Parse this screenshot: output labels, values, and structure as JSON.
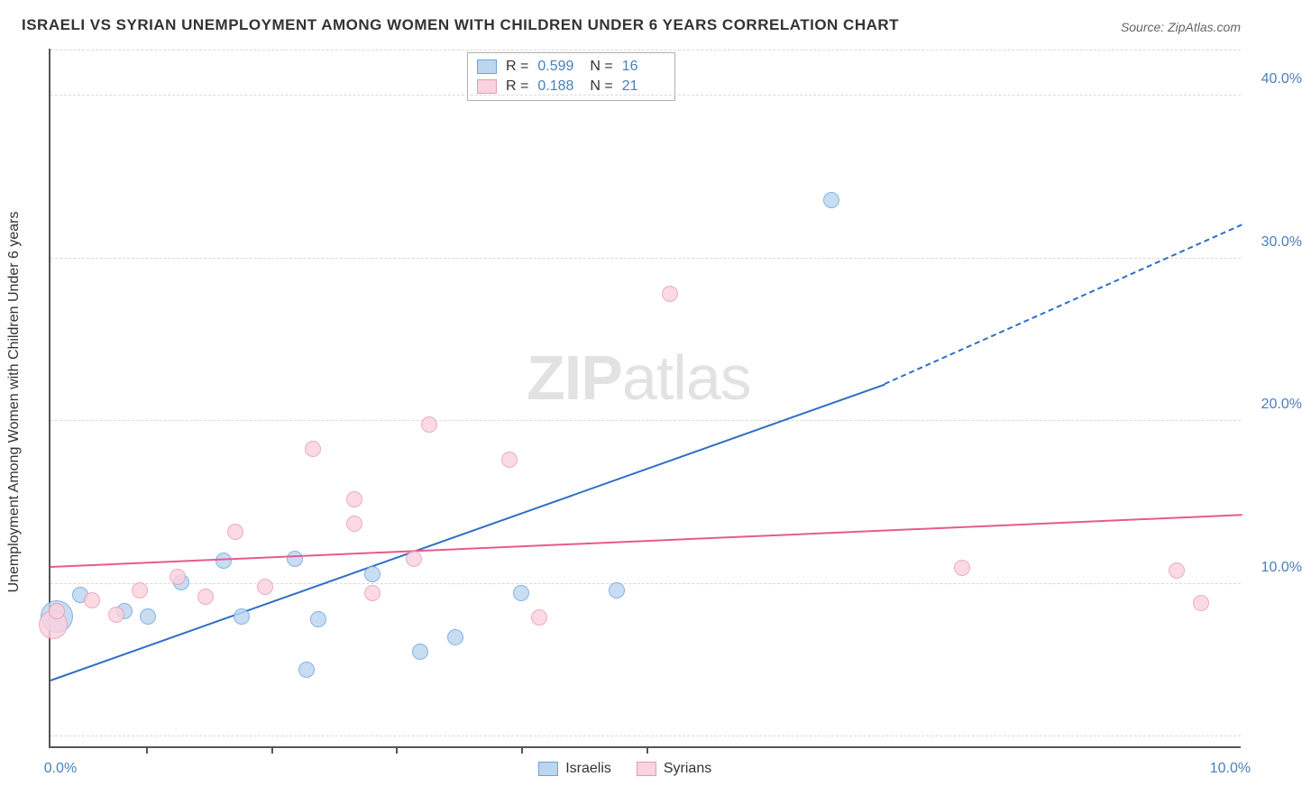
{
  "title": "ISRAELI VS SYRIAN UNEMPLOYMENT AMONG WOMEN WITH CHILDREN UNDER 6 YEARS CORRELATION CHART",
  "source": "Source: ZipAtlas.com",
  "y_axis_title": "Unemployment Among Women with Children Under 6 years",
  "watermark_zip": "ZIP",
  "watermark_atlas": "atlas",
  "chart": {
    "type": "scatter",
    "background_color": "#ffffff",
    "grid_color": "#d9d9d9",
    "xlim": [
      0,
      10
    ],
    "ylim": [
      0,
      43
    ],
    "xtick_positions": [
      0.8,
      1.85,
      2.9,
      3.95,
      5.0
    ],
    "xtick_labels": [
      {
        "pos": 0,
        "label": "0.0%"
      },
      {
        "pos": 10,
        "label": "10.0%"
      }
    ],
    "ytick_labels": [
      {
        "pos": 10,
        "label": "10.0%"
      },
      {
        "pos": 20,
        "label": "20.0%"
      },
      {
        "pos": 30,
        "label": "30.0%"
      },
      {
        "pos": 40,
        "label": "40.0%"
      }
    ],
    "gridline_y": [
      0.6,
      10,
      20,
      30,
      40,
      42.8
    ]
  },
  "series": [
    {
      "name": "Israelis",
      "fill_color": "#bcd6f0",
      "stroke_color": "#6ba2dd",
      "line_color": "#2f6fc4",
      "R_label": "R =",
      "R": "0.599",
      "N_label": "N =",
      "N": "16",
      "trend": {
        "x1": 0,
        "y1": 4.0,
        "x2": 7.0,
        "y2": 22.2,
        "dash_x2": 10,
        "dash_y2": 32.0
      },
      "points": [
        {
          "x": 0.05,
          "y": 8.0,
          "r": 18
        },
        {
          "x": 0.25,
          "y": 9.3,
          "r": 9
        },
        {
          "x": 0.62,
          "y": 8.3,
          "r": 9
        },
        {
          "x": 0.82,
          "y": 8.0,
          "r": 9
        },
        {
          "x": 1.1,
          "y": 10.1,
          "r": 9
        },
        {
          "x": 1.45,
          "y": 11.4,
          "r": 9
        },
        {
          "x": 1.6,
          "y": 8.0,
          "r": 9
        },
        {
          "x": 2.05,
          "y": 11.5,
          "r": 9
        },
        {
          "x": 2.15,
          "y": 4.7,
          "r": 9
        },
        {
          "x": 2.25,
          "y": 7.8,
          "r": 9
        },
        {
          "x": 2.7,
          "y": 10.6,
          "r": 9
        },
        {
          "x": 3.1,
          "y": 5.8,
          "r": 9
        },
        {
          "x": 3.4,
          "y": 6.7,
          "r": 9
        },
        {
          "x": 3.95,
          "y": 9.4,
          "r": 9
        },
        {
          "x": 4.75,
          "y": 9.6,
          "r": 9
        },
        {
          "x": 6.55,
          "y": 33.6,
          "r": 9
        }
      ]
    },
    {
      "name": "Syrians",
      "fill_color": "#fbd2df",
      "stroke_color": "#e79ab5",
      "line_color": "#e75a8d",
      "R_label": "R =",
      "R": "0.188",
      "N_label": "N =",
      "N": "21",
      "trend": {
        "x1": 0,
        "y1": 11.0,
        "x2": 10,
        "y2": 14.2
      },
      "points": [
        {
          "x": 0.02,
          "y": 7.5,
          "r": 16
        },
        {
          "x": 0.05,
          "y": 8.3,
          "r": 9
        },
        {
          "x": 0.35,
          "y": 9.0,
          "r": 9
        },
        {
          "x": 0.55,
          "y": 8.1,
          "r": 9
        },
        {
          "x": 0.75,
          "y": 9.6,
          "r": 9
        },
        {
          "x": 1.07,
          "y": 10.4,
          "r": 9
        },
        {
          "x": 1.3,
          "y": 9.2,
          "r": 9
        },
        {
          "x": 1.55,
          "y": 13.2,
          "r": 9
        },
        {
          "x": 1.8,
          "y": 9.8,
          "r": 9
        },
        {
          "x": 2.2,
          "y": 18.3,
          "r": 9
        },
        {
          "x": 2.55,
          "y": 15.2,
          "r": 9
        },
        {
          "x": 2.55,
          "y": 13.7,
          "r": 9
        },
        {
          "x": 2.7,
          "y": 9.4,
          "r": 9
        },
        {
          "x": 3.05,
          "y": 11.5,
          "r": 9
        },
        {
          "x": 3.18,
          "y": 19.8,
          "r": 9
        },
        {
          "x": 3.85,
          "y": 17.6,
          "r": 9
        },
        {
          "x": 4.1,
          "y": 7.9,
          "r": 9
        },
        {
          "x": 5.2,
          "y": 27.8,
          "r": 9
        },
        {
          "x": 7.65,
          "y": 11.0,
          "r": 9
        },
        {
          "x": 9.45,
          "y": 10.8,
          "r": 9
        },
        {
          "x": 9.65,
          "y": 8.8,
          "r": 9
        }
      ]
    }
  ],
  "legend": {
    "israelis": "Israelis",
    "syrians": "Syrians"
  }
}
